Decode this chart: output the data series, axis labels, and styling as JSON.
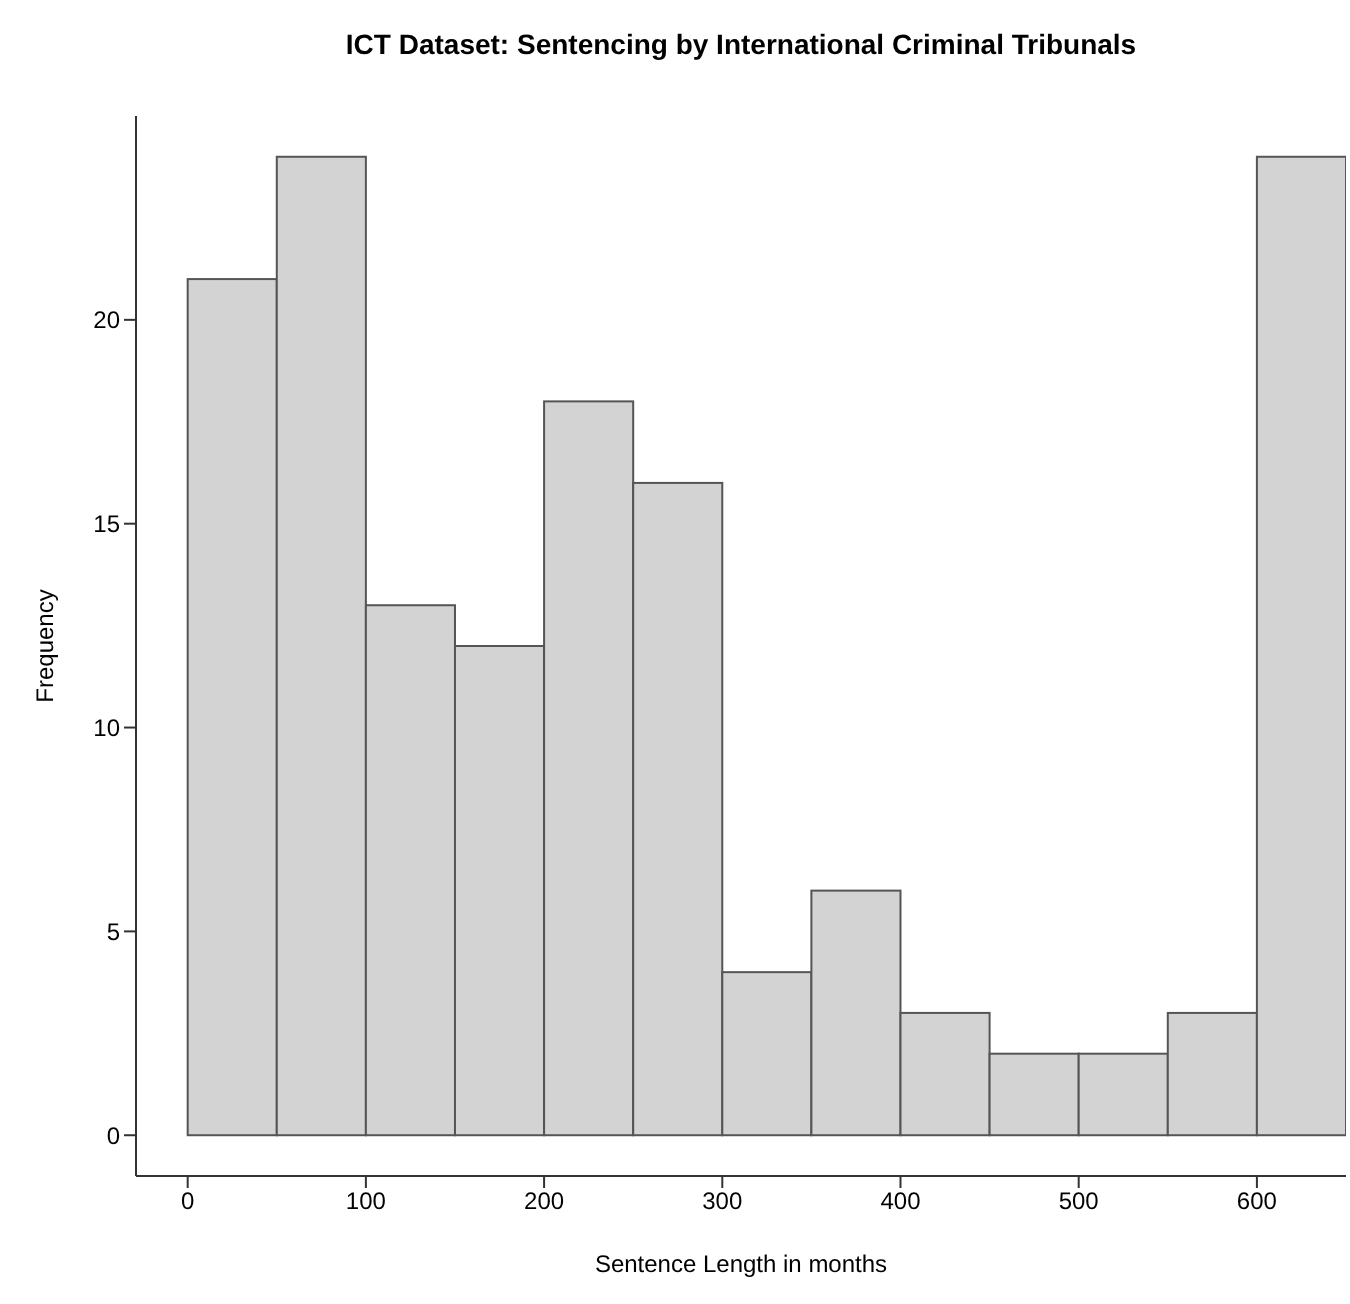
{
  "chart_data": {
    "type": "histogram",
    "title": "ICT Dataset: Sentencing by International Criminal Tribunals",
    "xlabel": "Sentence Length in months",
    "ylabel": "Frequency",
    "bins": [
      0,
      50,
      100,
      150,
      200,
      250,
      300,
      350,
      400,
      450,
      500,
      550,
      600,
      650
    ],
    "values": [
      21,
      24,
      13,
      12,
      18,
      16,
      4,
      6,
      3,
      2,
      2,
      3,
      24
    ],
    "color": "#d3d3d3",
    "xlim": [
      -29,
      650
    ],
    "xticks": [
      0,
      100,
      200,
      300,
      400,
      500,
      600
    ],
    "ylim": [
      -1,
      25
    ],
    "yticks": [
      0,
      5,
      10,
      15,
      20
    ],
    "grid": false,
    "legend": false
  }
}
